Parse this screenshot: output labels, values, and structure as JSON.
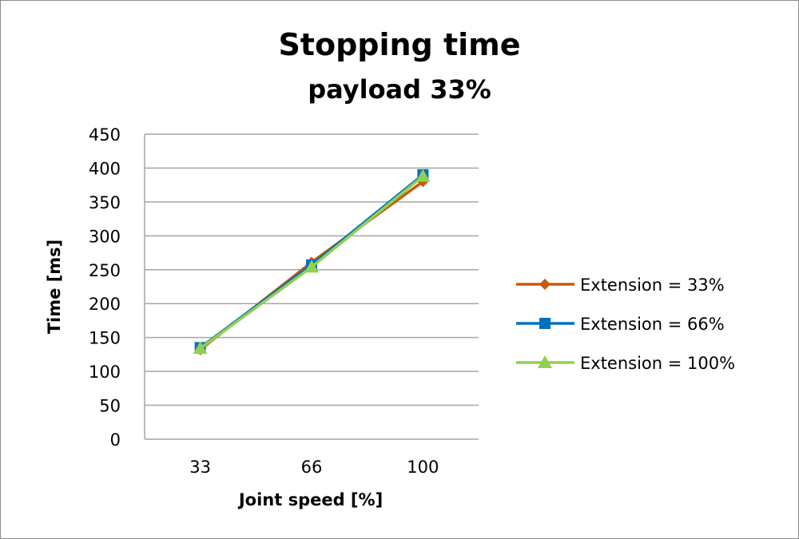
{
  "chart_data": {
    "type": "line",
    "title": "Stopping time",
    "subtitle": "payload 33%",
    "xlabel": "Joint speed [%]",
    "ylabel": "Time [ms]",
    "categories": [
      "33",
      "66",
      "100"
    ],
    "ylim": [
      0,
      450
    ],
    "yticks": [
      "0",
      "50",
      "100",
      "150",
      "200",
      "250",
      "300",
      "350",
      "400",
      "450"
    ],
    "grid": true,
    "legend_position": "right",
    "series": [
      {
        "name": "Extension = 33%",
        "values": [
          132,
          261,
          380
        ],
        "color": "#C55A11",
        "marker": "diamond"
      },
      {
        "name": "Extension = 66%",
        "values": [
          135,
          257,
          390
        ],
        "color": "#0070C0",
        "marker": "square"
      },
      {
        "name": "Extension = 100%",
        "values": [
          134,
          254,
          388
        ],
        "color": "#92D050",
        "marker": "triangle"
      }
    ]
  }
}
